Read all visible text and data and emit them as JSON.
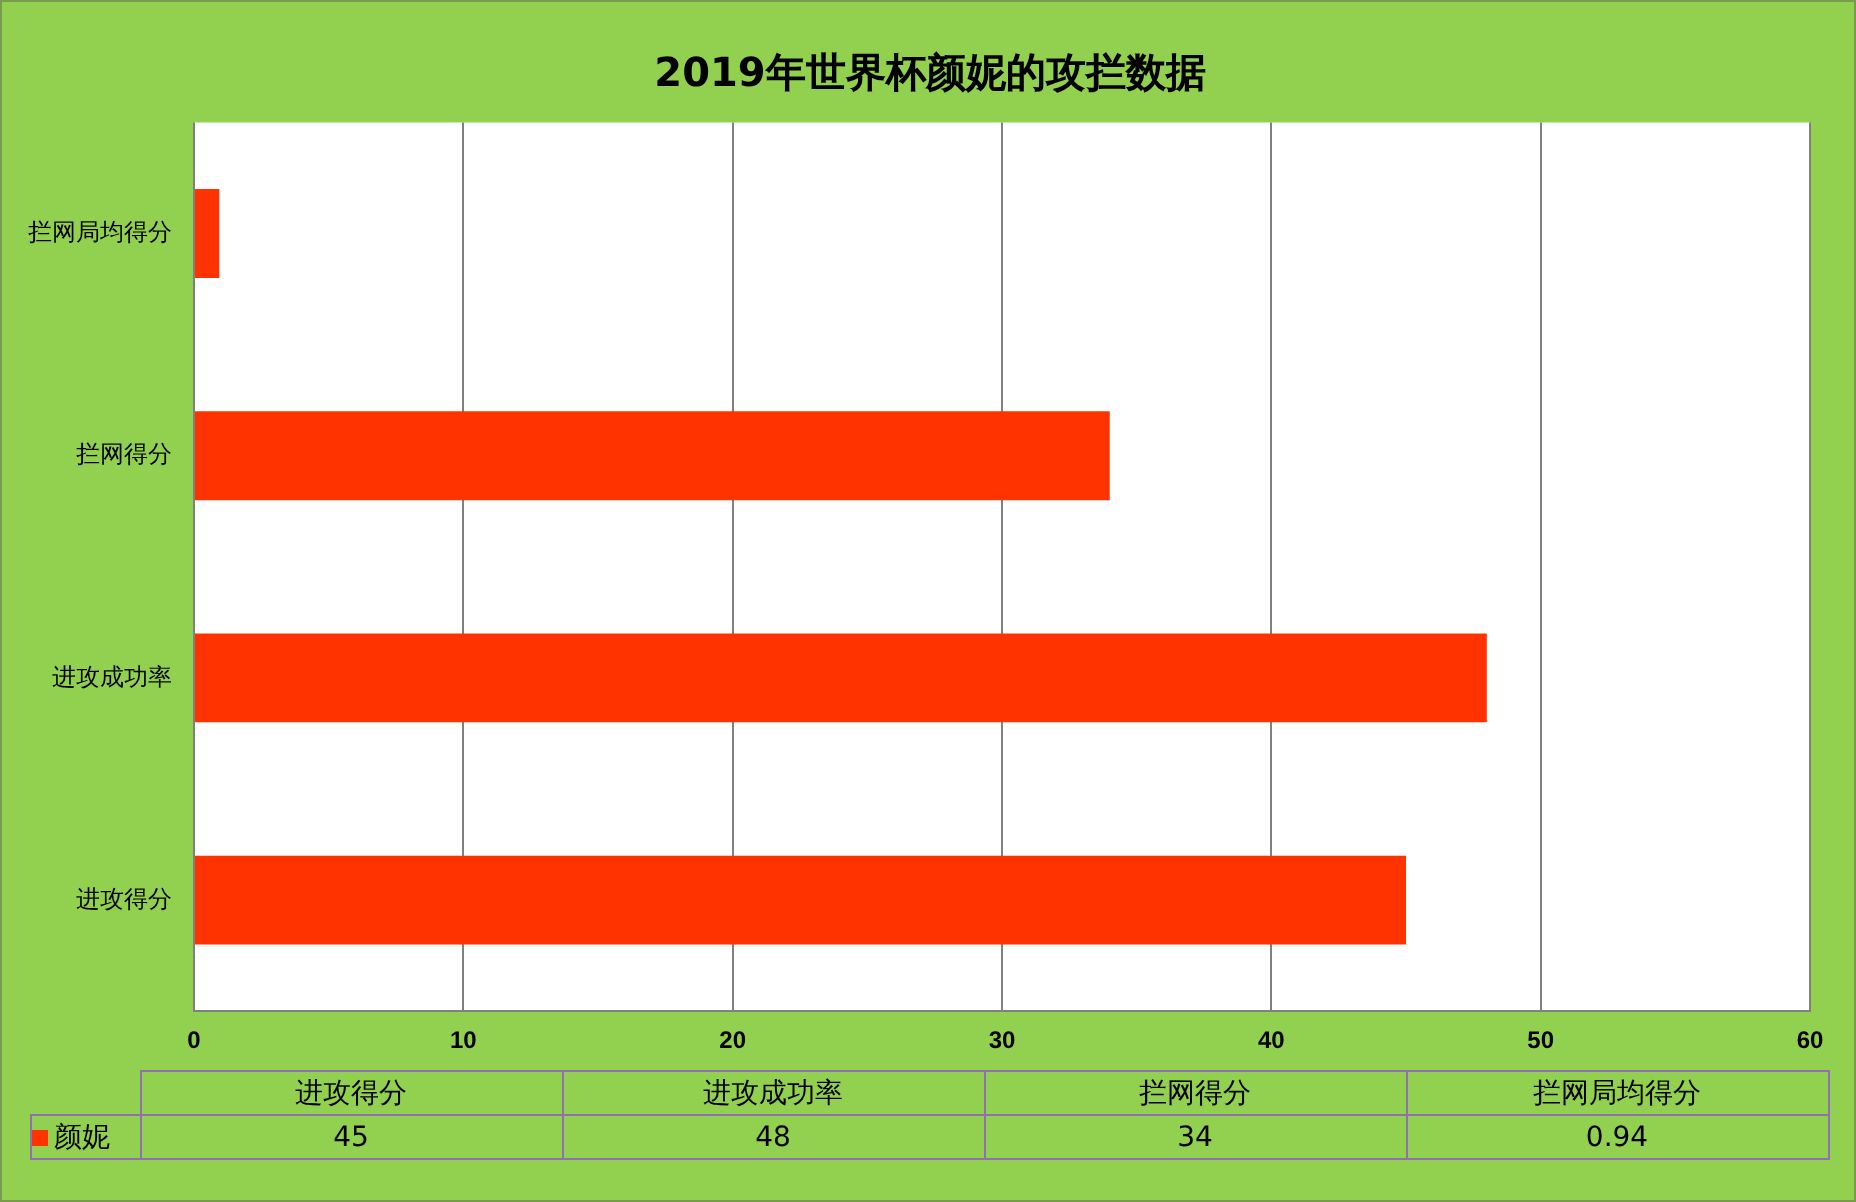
{
  "chart_data": {
    "type": "bar",
    "orientation": "horizontal",
    "title": "2019年世界杯颜妮的攻拦数据",
    "categories": [
      "拦网局均得分",
      "拦网得分",
      "进攻成功率",
      "进攻得分"
    ],
    "series": [
      {
        "name": "颜妮",
        "color": "#ff3300",
        "values": [
          0.94,
          34,
          48,
          45
        ]
      }
    ],
    "xlim": [
      0,
      60
    ],
    "xticks": [
      0,
      10,
      20,
      30,
      40,
      50,
      60
    ],
    "grid": "x",
    "legend": "bottom",
    "annotations": [
      "45",
      "48",
      "34",
      "0.94"
    ]
  }
}
